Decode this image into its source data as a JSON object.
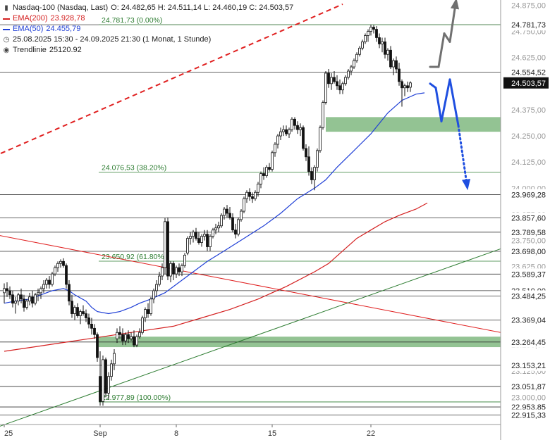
{
  "header": {
    "symbol": "Nasdaq-100 (Nasdaq, Last)",
    "ohlc": "O: 24.482,65  H: 24.511,14  L: 24.460,19  C: 24.503,57",
    "ema200_label": "EMA(200)",
    "ema200_value": "23.928,78",
    "ema50_label": "EMA(50)",
    "ema50_value": "24.455,79",
    "period": "25.08.2025 15:30 - 24.09.2025 21:30   (1 Monat, 1 Stunde)",
    "trend_label": "Trendlinie",
    "trend_value": "25120.92"
  },
  "chart_data": {
    "type": "candlestick",
    "title": "Nasdaq-100 (Nasdaq, Last)",
    "y_range": [
      22880,
      24900
    ],
    "y_axis_ticks": [
      "24.875,00",
      "24.750,00",
      "24.625,00",
      "24.500,00",
      "24.375,00",
      "24.250,00",
      "24.125,00",
      "24.000,00",
      "23.875,00",
      "23.750,00",
      "23.625,00",
      "23.500,00",
      "23.375,00",
      "23.250,00",
      "23.125,00",
      "23.000,00"
    ],
    "x_axis_ticks": [
      "25",
      "Sep",
      "8",
      "15",
      "22"
    ],
    "x_tick_bars": [
      0,
      34,
      61,
      95,
      130
    ],
    "bars_total": 176,
    "price_levels": [
      {
        "value": 24781.73,
        "label": "24.781,73"
      },
      {
        "value": 24554.52,
        "label": "24.554,52"
      },
      {
        "value": 23969.28,
        "label": "23.969,28"
      },
      {
        "value": 23857.6,
        "label": "23.857,60"
      },
      {
        "value": 23789.58,
        "label": "23.789,58"
      },
      {
        "value": 23698.0,
        "label": "23.698,00"
      },
      {
        "value": 23589.37,
        "label": "23.589,37"
      },
      {
        "value": 23510.0,
        "label": "23.510,00"
      },
      {
        "value": 23484.25,
        "label": "23.484,25"
      },
      {
        "value": 23369.04,
        "label": "23.369,04"
      },
      {
        "value": 23264.45,
        "label": "23.264,45"
      },
      {
        "value": 23153.21,
        "label": "23.153,21"
      },
      {
        "value": 23051.87,
        "label": "23.051,87"
      },
      {
        "value": 22953.85,
        "label": "22.953,85"
      },
      {
        "value": 22915.33,
        "label": "22.915,33"
      }
    ],
    "current_price": {
      "value": 24503.57,
      "label": "24.503,57"
    },
    "fibonacci": [
      {
        "value": 24781.73,
        "label": "24.781,73 (0.00%)"
      },
      {
        "value": 24076.53,
        "label": "24.076,53 (38.20%)"
      },
      {
        "value": 23650.92,
        "label": "23.650,92 (61.80%)"
      },
      {
        "value": 22977.89,
        "label": "22.977,89 (100.00%)"
      }
    ],
    "zones": [
      {
        "from": 24270,
        "to": 24340
      },
      {
        "from": 23240,
        "to": 23290
      }
    ],
    "candles": [
      [
        23500,
        23545,
        23450,
        23520
      ],
      [
        23520,
        23550,
        23480,
        23510
      ],
      [
        23510,
        23530,
        23470,
        23490
      ],
      [
        23490,
        23510,
        23430,
        23450
      ],
      [
        23450,
        23480,
        23400,
        23460
      ],
      [
        23460,
        23500,
        23440,
        23490
      ],
      [
        23490,
        23520,
        23450,
        23470
      ],
      [
        23470,
        23490,
        23410,
        23430
      ],
      [
        23430,
        23470,
        23420,
        23460
      ],
      [
        23460,
        23500,
        23440,
        23480
      ],
      [
        23480,
        23510,
        23430,
        23450
      ],
      [
        23450,
        23500,
        23440,
        23490
      ],
      [
        23490,
        23520,
        23460,
        23500
      ],
      [
        23500,
        23530,
        23470,
        23520
      ],
      [
        23520,
        23560,
        23500,
        23540
      ],
      [
        23540,
        23570,
        23520,
        23560
      ],
      [
        23560,
        23580,
        23520,
        23540
      ],
      [
        23540,
        23600,
        23530,
        23590
      ],
      [
        23590,
        23630,
        23580,
        23620
      ],
      [
        23620,
        23650,
        23600,
        23640
      ],
      [
        23640,
        23660,
        23620,
        23650
      ],
      [
        23650,
        23665,
        23620,
        23630
      ],
      [
        23630,
        23640,
        23520,
        23540
      ],
      [
        23540,
        23560,
        23440,
        23460
      ],
      [
        23460,
        23490,
        23380,
        23400
      ],
      [
        23400,
        23440,
        23370,
        23430
      ],
      [
        23430,
        23450,
        23380,
        23390
      ],
      [
        23390,
        23420,
        23350,
        23410
      ],
      [
        23410,
        23440,
        23390,
        23400
      ],
      [
        23400,
        23420,
        23360,
        23380
      ],
      [
        23380,
        23400,
        23330,
        23350
      ],
      [
        23350,
        23380,
        23300,
        23330
      ],
      [
        23330,
        23350,
        23280,
        23300
      ],
      [
        23300,
        23310,
        23170,
        23190
      ],
      [
        23100,
        23220,
        22960,
        22980
      ],
      [
        22980,
        23200,
        22960,
        23180
      ],
      [
        23180,
        23190,
        23000,
        23020
      ],
      [
        23020,
        23120,
        22990,
        23100
      ],
      [
        23100,
        23180,
        23080,
        23160
      ],
      [
        23160,
        23230,
        23130,
        23210
      ],
      [
        23280,
        23330,
        23260,
        23310
      ],
      [
        23310,
        23340,
        23280,
        23300
      ],
      [
        23300,
        23330,
        23250,
        23270
      ],
      [
        23270,
        23310,
        23250,
        23300
      ],
      [
        23300,
        23320,
        23260,
        23280
      ],
      [
        23280,
        23310,
        23270,
        23290
      ],
      [
        23290,
        23320,
        23240,
        23250
      ],
      [
        23250,
        23300,
        23240,
        23290
      ],
      [
        23290,
        23330,
        23280,
        23310
      ],
      [
        23310,
        23390,
        23300,
        23380
      ],
      [
        23380,
        23430,
        23360,
        23420
      ],
      [
        23420,
        23450,
        23380,
        23400
      ],
      [
        23400,
        23480,
        23390,
        23470
      ],
      [
        23470,
        23520,
        23450,
        23510
      ],
      [
        23510,
        23560,
        23480,
        23540
      ],
      [
        23540,
        23600,
        23530,
        23580
      ],
      [
        23580,
        23640,
        23560,
        23620
      ],
      [
        23620,
        23858,
        23590,
        23840
      ],
      [
        23840,
        23860,
        23560,
        23580
      ],
      [
        23580,
        23650,
        23550,
        23640
      ],
      [
        23640,
        23650,
        23560,
        23590
      ],
      [
        23590,
        23630,
        23570,
        23620
      ],
      [
        23620,
        23640,
        23580,
        23600
      ],
      [
        23600,
        23640,
        23580,
        23630
      ],
      [
        23630,
        23690,
        23620,
        23680
      ],
      [
        23690,
        23770,
        23680,
        23760
      ],
      [
        23760,
        23790,
        23730,
        23770
      ],
      [
        23770,
        23800,
        23740,
        23790
      ],
      [
        23790,
        23810,
        23750,
        23760
      ],
      [
        23760,
        23790,
        23730,
        23740
      ],
      [
        23740,
        23780,
        23720,
        23770
      ],
      [
        23770,
        23800,
        23750,
        23780
      ],
      [
        23780,
        23800,
        23700,
        23720
      ],
      [
        23720,
        23780,
        23700,
        23770
      ],
      [
        23770,
        23810,
        23760,
        23800
      ],
      [
        23800,
        23830,
        23780,
        23810
      ],
      [
        23810,
        23840,
        23790,
        23820
      ],
      [
        23820,
        23880,
        23810,
        23870
      ],
      [
        23870,
        23910,
        23850,
        23900
      ],
      [
        23900,
        23920,
        23860,
        23880
      ],
      [
        23880,
        23910,
        23850,
        23860
      ],
      [
        23860,
        23880,
        23790,
        23800
      ],
      [
        23800,
        23830,
        23760,
        23780
      ],
      [
        23780,
        23860,
        23770,
        23850
      ],
      [
        23850,
        23900,
        23840,
        23890
      ],
      [
        23890,
        23960,
        23880,
        23950
      ],
      [
        23950,
        23990,
        23930,
        23980
      ],
      [
        23980,
        24000,
        23940,
        23960
      ],
      [
        23960,
        23980,
        23930,
        23950
      ],
      [
        23950,
        23990,
        23940,
        23980
      ],
      [
        23980,
        24030,
        23960,
        24020
      ],
      [
        24020,
        24080,
        24000,
        24070
      ],
      [
        24070,
        24100,
        24040,
        24060
      ],
      [
        24060,
        24110,
        24050,
        24100
      ],
      [
        24100,
        24120,
        24080,
        24090
      ],
      [
        24090,
        24180,
        24080,
        24170
      ],
      [
        24170,
        24220,
        24150,
        24210
      ],
      [
        24210,
        24260,
        24190,
        24250
      ],
      [
        24250,
        24290,
        24230,
        24270
      ],
      [
        24270,
        24300,
        24250,
        24280
      ],
      [
        24280,
        24300,
        24250,
        24260
      ],
      [
        24260,
        24290,
        24240,
        24280
      ],
      [
        24280,
        24340,
        24270,
        24330
      ],
      [
        24330,
        24340,
        24280,
        24300
      ],
      [
        24300,
        24320,
        24260,
        24280
      ],
      [
        24280,
        24310,
        24250,
        24290
      ],
      [
        24290,
        24300,
        24180,
        24190
      ],
      [
        24190,
        24210,
        24130,
        24150
      ],
      [
        24150,
        24200,
        24060,
        24080
      ],
      [
        24080,
        24100,
        24020,
        24040
      ],
      [
        24040,
        24110,
        23990,
        24100
      ],
      [
        24100,
        24190,
        24080,
        24180
      ],
      [
        24180,
        24300,
        24170,
        24290
      ],
      [
        24290,
        24420,
        24280,
        24410
      ],
      [
        24410,
        24560,
        24400,
        24550
      ],
      [
        24550,
        24570,
        24480,
        24500
      ],
      [
        24500,
        24550,
        24470,
        24530
      ],
      [
        24530,
        24560,
        24500,
        24510
      ],
      [
        24510,
        24540,
        24470,
        24490
      ],
      [
        24490,
        24520,
        24450,
        24470
      ],
      [
        24470,
        24510,
        24450,
        24500
      ],
      [
        24500,
        24540,
        24490,
        24530
      ],
      [
        24530,
        24570,
        24520,
        24560
      ],
      [
        24560,
        24590,
        24540,
        24580
      ],
      [
        24580,
        24620,
        24570,
        24610
      ],
      [
        24610,
        24650,
        24600,
        24640
      ],
      [
        24640,
        24680,
        24630,
        24670
      ],
      [
        24670,
        24710,
        24660,
        24700
      ],
      [
        24700,
        24740,
        24690,
        24730
      ],
      [
        24730,
        24760,
        24700,
        24750
      ],
      [
        24750,
        24782,
        24730,
        24770
      ],
      [
        24770,
        24780,
        24740,
        24760
      ],
      [
        24760,
        24775,
        24700,
        24720
      ],
      [
        24720,
        24740,
        24670,
        24690
      ],
      [
        24690,
        24720,
        24650,
        24700
      ],
      [
        24700,
        24720,
        24620,
        24640
      ],
      [
        24640,
        24670,
        24610,
        24660
      ],
      [
        24660,
        24680,
        24570,
        24580
      ],
      [
        24580,
        24620,
        24540,
        24610
      ],
      [
        24610,
        24630,
        24550,
        24570
      ],
      [
        24570,
        24600,
        24490,
        24510
      ],
      [
        24510,
        24520,
        24390,
        24480
      ],
      [
        24480,
        24500,
        24440,
        24490
      ],
      [
        24490,
        24510,
        24460,
        24480
      ],
      [
        24482.65,
        24511.14,
        24460.19,
        24503.57
      ]
    ],
    "ema50": [
      [
        0,
        23450
      ],
      [
        4,
        23460
      ],
      [
        9,
        23470
      ],
      [
        13,
        23490
      ],
      [
        17,
        23510
      ],
      [
        21,
        23520
      ],
      [
        23,
        23510
      ],
      [
        25,
        23490
      ],
      [
        29,
        23460
      ],
      [
        31,
        23430
      ],
      [
        33,
        23410
      ],
      [
        37,
        23400
      ],
      [
        41,
        23410
      ],
      [
        45,
        23430
      ],
      [
        48,
        23450
      ],
      [
        52,
        23470
      ],
      [
        57,
        23500
      ],
      [
        62,
        23550
      ],
      [
        67,
        23600
      ],
      [
        72,
        23650
      ],
      [
        78,
        23700
      ],
      [
        85,
        23760
      ],
      [
        92,
        23820
      ],
      [
        98,
        23880
      ],
      [
        104,
        23950
      ],
      [
        110,
        24000
      ],
      [
        114,
        24040
      ],
      [
        118,
        24100
      ],
      [
        124,
        24180
      ],
      [
        130,
        24260
      ],
      [
        136,
        24360
      ],
      [
        141,
        24420
      ],
      [
        146,
        24450
      ],
      [
        149,
        24456
      ]
    ],
    "ema200": [
      [
        0,
        23220
      ],
      [
        10,
        23240
      ],
      [
        20,
        23260
      ],
      [
        30,
        23280
      ],
      [
        40,
        23300
      ],
      [
        50,
        23320
      ],
      [
        60,
        23340
      ],
      [
        70,
        23380
      ],
      [
        80,
        23420
      ],
      [
        90,
        23470
      ],
      [
        100,
        23530
      ],
      [
        110,
        23600
      ],
      [
        115,
        23640
      ],
      [
        120,
        23700
      ],
      [
        125,
        23760
      ],
      [
        130,
        23800
      ],
      [
        135,
        23840
      ],
      [
        140,
        23870
      ],
      [
        146,
        23900
      ],
      [
        150,
        23929
      ]
    ],
    "trendlines": [
      {
        "name": "Trendlinie",
        "color": "#e02020",
        "style": "dashed",
        "points": [
          [
            -4,
            24150
          ],
          [
            120,
            24880
          ]
        ]
      },
      {
        "color": "#e02020",
        "style": "solid",
        "points": [
          [
            -4,
            23780
          ],
          [
            176,
            23310
          ]
        ]
      },
      {
        "color": "#2e7d32",
        "style": "solid",
        "points": [
          [
            -4,
            22850
          ],
          [
            176,
            23710
          ]
        ]
      }
    ],
    "scenario_up": [
      [
        151,
        24580
      ],
      [
        154,
        24580
      ],
      [
        156,
        24740
      ],
      [
        158,
        24700
      ],
      [
        160,
        24880
      ]
    ],
    "scenario_down": [
      [
        151,
        24500
      ],
      [
        153,
        24480
      ],
      [
        155,
        24320
      ],
      [
        158,
        24520
      ],
      [
        161,
        24300
      ],
      [
        164,
        24020
      ]
    ]
  },
  "colors": {
    "up": "#111111",
    "down": "#111111",
    "ema50": "#1f3fd6",
    "ema200": "#d42020",
    "zone": "#80b880",
    "fib": "#2e7d32",
    "scenario_up": "#707070",
    "scenario_down": "#1f4fe0"
  }
}
